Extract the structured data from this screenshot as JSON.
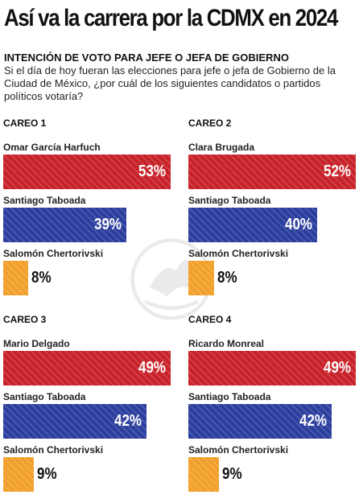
{
  "header": {
    "title": "Así va la carrera por la CDMX en 2024",
    "subtitle": "INTENCIÓN DE VOTO PARA JEFE O JEFA DE GOBIERNO",
    "question": "Si el día de hoy fueran las elecciones para jefe o jefa de Gobierno de la Ciudad de México, ¿por cuál de los siguientes candidatos o partidos políticos votaría?"
  },
  "colors": {
    "red": "#c8232a",
    "blue": "#2c3f9e",
    "orange": "#f2a02c"
  },
  "chart_data": [
    {
      "type": "bar",
      "title": "CAREO 1",
      "xlim": [
        0,
        53
      ],
      "categories": [
        "Omar García Harfuch",
        "Santiago Taboada",
        "Salomón Chertorivski"
      ],
      "values": [
        53,
        39,
        8
      ],
      "labels": [
        "53%",
        "39%",
        "8%"
      ],
      "colors": [
        "red",
        "blue",
        "orange"
      ]
    },
    {
      "type": "bar",
      "title": "CAREO 2",
      "xlim": [
        0,
        52
      ],
      "categories": [
        "Clara Brugada",
        "Santiago Taboada",
        "Salomón Chertorivski"
      ],
      "values": [
        52,
        40,
        8
      ],
      "labels": [
        "52%",
        "40%",
        "8%"
      ],
      "colors": [
        "red",
        "blue",
        "orange"
      ]
    },
    {
      "type": "bar",
      "title": "CAREO 3",
      "xlim": [
        0,
        49
      ],
      "categories": [
        "Mario Delgado",
        "Santiago Taboada",
        "Salomón Chertorivski"
      ],
      "values": [
        49,
        42,
        9
      ],
      "labels": [
        "49%",
        "42%",
        "9%"
      ],
      "colors": [
        "red",
        "blue",
        "orange"
      ]
    },
    {
      "type": "bar",
      "title": "CAREO 4",
      "xlim": [
        0,
        49
      ],
      "categories": [
        "Ricardo Monreal",
        "Santiago Taboada",
        "Salomón Chertorivski"
      ],
      "values": [
        49,
        42,
        9
      ],
      "labels": [
        "49%",
        "42%",
        "9%"
      ],
      "colors": [
        "red",
        "blue",
        "orange"
      ]
    }
  ]
}
